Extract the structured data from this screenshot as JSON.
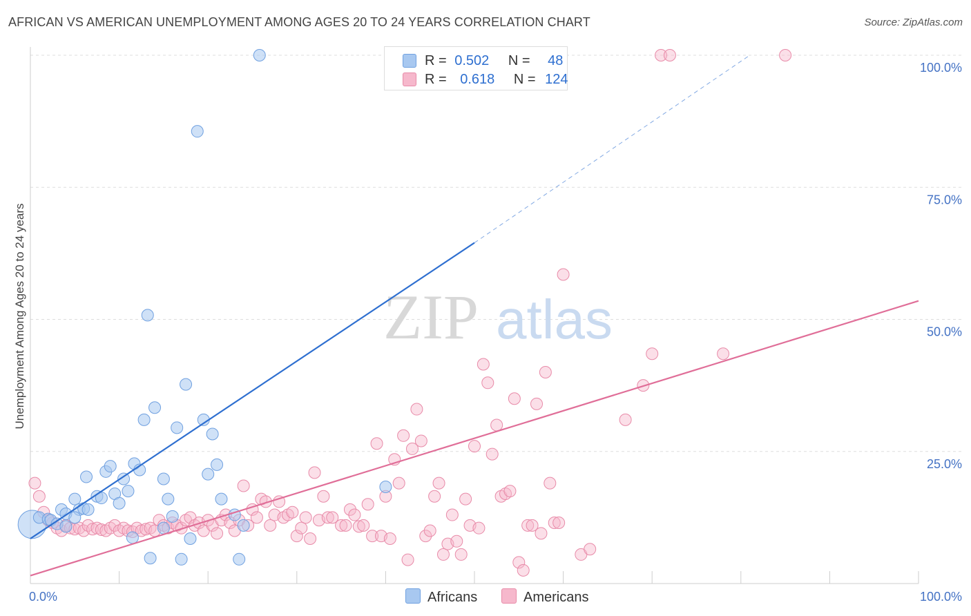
{
  "title": "AFRICAN VS AMERICAN UNEMPLOYMENT AMONG AGES 20 TO 24 YEARS CORRELATION CHART",
  "source": "Source: ZipAtlas.com",
  "watermark": {
    "zip": "ZIP",
    "atlas": "atlas"
  },
  "legend": {
    "r_label": "R =",
    "n_label": "N =",
    "africans": {
      "r": "0.502",
      "n": "48"
    },
    "americans": {
      "r": "0.618",
      "n": "124"
    }
  },
  "bottom_legend": {
    "africans": "Africans",
    "americans": "Americans"
  },
  "colors": {
    "africans_fill": "#a8c8f0",
    "africans_stroke": "#6fa0e0",
    "africans_line": "#2e6fd0",
    "americans_fill": "#f6b8cc",
    "americans_stroke": "#e88aa8",
    "americans_line": "#e06e98",
    "grid": "#dddddd",
    "axis_tick": "#4472c4"
  },
  "chart_data": {
    "type": "scatter",
    "title": "AFRICAN VS AMERICAN UNEMPLOYMENT AMONG AGES 20 TO 24 YEARS CORRELATION CHART",
    "xlabel": "",
    "ylabel": "Unemployment Among Ages 20 to 24 years",
    "xlim": [
      0,
      100
    ],
    "ylim": [
      0,
      100
    ],
    "x_ticks": [
      "0.0%",
      "100.0%"
    ],
    "y_ticks": [
      "25.0%",
      "50.0%",
      "75.0%",
      "100.0%"
    ],
    "y_tick_values": [
      25,
      50,
      75,
      100
    ],
    "grid": true,
    "legend_position": "top-center",
    "series": [
      {
        "name": "Africans",
        "R": 0.502,
        "N": 48,
        "trend": {
          "x0": 0,
          "y0": 8.5,
          "x1": 50,
          "y1": 64.5,
          "dash_to": [
            81,
            100
          ]
        },
        "points": [
          [
            0.2,
            11.2,
            1.5
          ],
          [
            1,
            12.5,
            1
          ],
          [
            2,
            12.2,
            1
          ],
          [
            2.3,
            12,
            1
          ],
          [
            3.5,
            14,
            1
          ],
          [
            4,
            13.2,
            1
          ],
          [
            5,
            16,
            1
          ],
          [
            5.5,
            14,
            1
          ],
          [
            6,
            14.2,
            1
          ],
          [
            6.5,
            14,
            1
          ],
          [
            6.3,
            20.2,
            1
          ],
          [
            7.5,
            16.5,
            1
          ],
          [
            8,
            16.2,
            1
          ],
          [
            8.5,
            21.2,
            1
          ],
          [
            9,
            22.2,
            1
          ],
          [
            9.5,
            17,
            1
          ],
          [
            10,
            15.2,
            1
          ],
          [
            10.5,
            19.8,
            1
          ],
          [
            11,
            17.5,
            1
          ],
          [
            11.7,
            22.7,
            1
          ],
          [
            12.3,
            21.5,
            1
          ],
          [
            12.8,
            31,
            1
          ],
          [
            13.2,
            50.8,
            1
          ],
          [
            14,
            33.3,
            1
          ],
          [
            15,
            19.8,
            1
          ],
          [
            15.5,
            16,
            1
          ],
          [
            16.5,
            29.5,
            1
          ],
          [
            17.5,
            37.7,
            1
          ],
          [
            18.8,
            85.6,
            1
          ],
          [
            19.5,
            31,
            1
          ],
          [
            20.5,
            28.3,
            1
          ],
          [
            21,
            22.5,
            1
          ],
          [
            21.5,
            16,
            1
          ],
          [
            16,
            12.7,
            1
          ],
          [
            13.5,
            4.8,
            1
          ],
          [
            17,
            4.6,
            1
          ],
          [
            18,
            8.5,
            1
          ],
          [
            23.5,
            4.6,
            1
          ],
          [
            24,
            11,
            1
          ],
          [
            25.8,
            100,
            1
          ],
          [
            40,
            18.3,
            1
          ],
          [
            20,
            20.7,
            1
          ],
          [
            23,
            13,
            1
          ],
          [
            15,
            10.5,
            1
          ],
          [
            11.5,
            8.7,
            1
          ],
          [
            5,
            12.5,
            1
          ],
          [
            3,
            11.3,
            1
          ],
          [
            4,
            10.8,
            1
          ]
        ]
      },
      {
        "name": "Americans",
        "R": 0.618,
        "N": 124,
        "trend": {
          "x0": 0,
          "y0": 1.5,
          "x1": 100,
          "y1": 53.5
        },
        "points": [
          [
            0.5,
            19
          ],
          [
            1,
            16.5
          ],
          [
            1.5,
            13.5
          ],
          [
            2,
            12
          ],
          [
            2.5,
            11.5
          ],
          [
            3,
            10.5
          ],
          [
            3.5,
            10
          ],
          [
            4,
            11
          ],
          [
            4.5,
            10.5
          ],
          [
            5,
            10.3
          ],
          [
            5.5,
            10.5
          ],
          [
            6,
            10
          ],
          [
            6.5,
            11
          ],
          [
            7,
            10.3
          ],
          [
            7.5,
            10.5
          ],
          [
            8,
            10.2
          ],
          [
            8.5,
            10
          ],
          [
            9,
            10.5
          ],
          [
            9.5,
            11
          ],
          [
            10,
            10
          ],
          [
            10.5,
            10.5
          ],
          [
            11,
            10
          ],
          [
            11.5,
            9.8
          ],
          [
            12,
            10.5
          ],
          [
            12.5,
            10
          ],
          [
            13,
            10.3
          ],
          [
            13.5,
            10.5
          ],
          [
            14,
            10
          ],
          [
            14.5,
            12
          ],
          [
            15,
            11
          ],
          [
            15.5,
            10.5
          ],
          [
            16,
            11.5
          ],
          [
            16.5,
            11
          ],
          [
            17,
            10.5
          ],
          [
            17.5,
            12
          ],
          [
            18,
            12.5
          ],
          [
            18.5,
            11
          ],
          [
            19,
            11.5
          ],
          [
            19.5,
            10
          ],
          [
            20,
            12
          ],
          [
            20.5,
            11
          ],
          [
            21,
            9.5
          ],
          [
            21.5,
            12
          ],
          [
            22,
            13
          ],
          [
            22.5,
            11.5
          ],
          [
            23,
            10
          ],
          [
            23.5,
            12
          ],
          [
            24,
            18.5
          ],
          [
            24.5,
            11
          ],
          [
            25,
            14
          ],
          [
            25.5,
            12.5
          ],
          [
            26,
            16
          ],
          [
            26.5,
            15.5
          ],
          [
            27,
            11
          ],
          [
            27.5,
            13
          ],
          [
            28,
            15.5
          ],
          [
            28.5,
            12.5
          ],
          [
            29,
            13
          ],
          [
            29.5,
            13.5
          ],
          [
            30,
            9
          ],
          [
            30.5,
            10.5
          ],
          [
            31,
            12.5
          ],
          [
            31.5,
            8.5
          ],
          [
            32,
            21
          ],
          [
            32.5,
            12
          ],
          [
            33,
            16.5
          ],
          [
            33.5,
            12.5
          ],
          [
            34,
            12.5
          ],
          [
            35,
            11
          ],
          [
            35.5,
            11
          ],
          [
            36,
            14
          ],
          [
            36.5,
            13
          ],
          [
            37,
            10.8
          ],
          [
            37.5,
            11
          ],
          [
            38,
            15
          ],
          [
            38.5,
            9
          ],
          [
            39,
            26.5
          ],
          [
            39.5,
            9
          ],
          [
            40,
            16.5
          ],
          [
            40.5,
            8.5
          ],
          [
            41,
            23.5
          ],
          [
            41.5,
            19
          ],
          [
            42,
            28
          ],
          [
            42.5,
            4.5
          ],
          [
            43,
            25.5
          ],
          [
            43.5,
            33
          ],
          [
            44,
            27
          ],
          [
            44.5,
            9
          ],
          [
            45,
            10
          ],
          [
            45.5,
            16.5
          ],
          [
            46,
            19
          ],
          [
            46.5,
            5.5
          ],
          [
            47,
            7.5
          ],
          [
            47.5,
            13
          ],
          [
            48,
            8
          ],
          [
            48.5,
            5.5
          ],
          [
            49,
            16
          ],
          [
            49.5,
            11
          ],
          [
            50,
            26
          ],
          [
            50.5,
            10.5
          ],
          [
            51,
            41.5
          ],
          [
            51.5,
            38
          ],
          [
            52,
            24.5
          ],
          [
            52.5,
            30
          ],
          [
            53,
            16.5
          ],
          [
            53.5,
            17
          ],
          [
            54,
            17.5
          ],
          [
            54.5,
            35
          ],
          [
            55,
            4
          ],
          [
            55.5,
            2.5
          ],
          [
            56,
            11
          ],
          [
            56.5,
            11
          ],
          [
            57,
            34
          ],
          [
            57.5,
            9.5
          ],
          [
            58,
            40
          ],
          [
            58.5,
            19
          ],
          [
            59,
            11.5
          ],
          [
            59.5,
            11.5
          ],
          [
            60,
            58.5
          ],
          [
            62,
            5.5
          ],
          [
            63,
            6.5
          ],
          [
            67,
            31
          ],
          [
            69,
            37.5
          ],
          [
            70,
            43.5
          ],
          [
            71,
            100
          ],
          [
            72,
            100
          ],
          [
            78,
            43.5
          ],
          [
            85,
            100
          ]
        ]
      }
    ]
  }
}
